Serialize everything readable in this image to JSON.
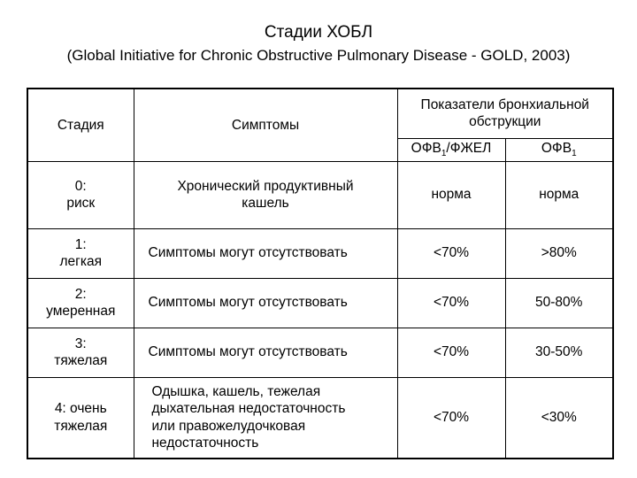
{
  "title": "Стадии ХОБЛ",
  "subtitle": "(Global Initiative for Chronic Obstructive Pulmonary Disease - GOLD, 2003)",
  "table": {
    "headers": {
      "stage": "Стадия",
      "symptoms": "Симптомы",
      "obstruction": "Показатели бронхиальной обструкции",
      "fev1_fvc_main": "ОФВ",
      "fev1_fvc_sub": "1",
      "fev1_fvc_rest": "/ФЖЕЛ",
      "fev1_main": "ОФВ",
      "fev1_sub": "1"
    },
    "rows": [
      {
        "stage_line1": "0:",
        "stage_line2": "риск",
        "symptoms": "Хронический продуктивный кашель",
        "fev1_fvc": "норма",
        "fev1": "норма"
      },
      {
        "stage_line1": "1:",
        "stage_line2": "легкая",
        "symptoms": "Симптомы могут отсутствовать",
        "fev1_fvc": "<70%",
        "fev1": ">80%"
      },
      {
        "stage_line1": "2:",
        "stage_line2": "умеренная",
        "symptoms": "Симптомы могут отсутствовать",
        "fev1_fvc": "<70%",
        "fev1": "50-80%"
      },
      {
        "stage_line1": "3:",
        "stage_line2": "тяжелая",
        "symptoms": "Симптомы могут отсутствовать",
        "fev1_fvc": "<70%",
        "fev1": "30-50%"
      },
      {
        "stage_line1": "4: очень",
        "stage_line2": "тяжелая",
        "symptoms": "Одышка, кашель, тежелая дыхательная недостаточность или правожелудочковая недостаточность",
        "fev1_fvc": "<70%",
        "fev1": "<30%"
      }
    ]
  }
}
